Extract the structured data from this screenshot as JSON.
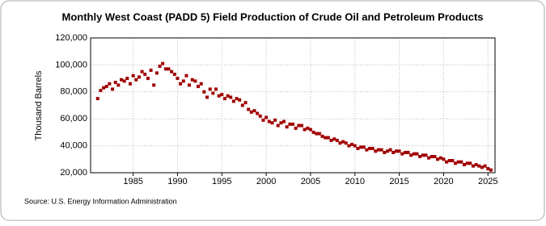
{
  "chart_data": {
    "type": "scatter",
    "title": "Monthly West Coast (PADD 5) Field Production of Crude Oil and Petroleum Products",
    "y_label": "Thousand Barrels",
    "source": "Source: U.S. Energy Information Administration",
    "xlim": [
      1980.2,
      2025.8
    ],
    "xticks": [
      1985,
      1990,
      1995,
      2000,
      2005,
      2010,
      2015,
      2020,
      2025
    ],
    "ylim": [
      20000,
      120000
    ],
    "yticks": [
      {
        "value": 20000,
        "label": "20,000"
      },
      {
        "value": 40000,
        "label": "40,000"
      },
      {
        "value": 60000,
        "label": "60,000"
      },
      {
        "value": 80000,
        "label": "80,000"
      },
      {
        "value": 100000,
        "label": "100,000"
      },
      {
        "value": 120000,
        "label": "120,000"
      }
    ],
    "grid": true,
    "color": "#a00000",
    "x": [
      1981,
      1981.33,
      1981.67,
      1982,
      1982.33,
      1982.67,
      1983,
      1983.33,
      1983.67,
      1984,
      1984.33,
      1984.67,
      1985,
      1985.33,
      1985.67,
      1986,
      1986.33,
      1986.67,
      1987,
      1987.33,
      1987.67,
      1988,
      1988.33,
      1988.67,
      1989,
      1989.33,
      1989.67,
      1990,
      1990.33,
      1990.67,
      1991,
      1991.33,
      1991.67,
      1992,
      1992.33,
      1992.67,
      1993,
      1993.33,
      1993.67,
      1994,
      1994.33,
      1994.67,
      1995,
      1995.33,
      1995.67,
      1996,
      1996.33,
      1996.67,
      1997,
      1997.33,
      1997.67,
      1998,
      1998.33,
      1998.67,
      1999,
      1999.33,
      1999.67,
      2000,
      2000.33,
      2000.67,
      2001,
      2001.33,
      2001.67,
      2002,
      2002.33,
      2002.67,
      2003,
      2003.33,
      2003.67,
      2004,
      2004.33,
      2004.67,
      2005,
      2005.33,
      2005.67,
      2006,
      2006.33,
      2006.67,
      2007,
      2007.33,
      2007.67,
      2008,
      2008.33,
      2008.67,
      2009,
      2009.33,
      2009.67,
      2010,
      2010.33,
      2010.67,
      2011,
      2011.33,
      2011.67,
      2012,
      2012.33,
      2012.67,
      2013,
      2013.33,
      2013.67,
      2014,
      2014.33,
      2014.67,
      2015,
      2015.33,
      2015.67,
      2016,
      2016.33,
      2016.67,
      2017,
      2017.33,
      2017.67,
      2018,
      2018.33,
      2018.67,
      2019,
      2019.33,
      2019.67,
      2020,
      2020.33,
      2020.67,
      2021,
      2021.33,
      2021.67,
      2022,
      2022.33,
      2022.67,
      2023,
      2023.33,
      2023.67,
      2024,
      2024.33,
      2024.67,
      2025,
      2025.33
    ],
    "values": [
      75000,
      81000,
      83000,
      84000,
      86000,
      82000,
      87000,
      85000,
      89000,
      88000,
      90000,
      86000,
      92000,
      89000,
      91000,
      95000,
      93000,
      90000,
      96000,
      85000,
      94000,
      99000,
      101000,
      97000,
      97000,
      95000,
      93000,
      90000,
      86000,
      88000,
      92000,
      85000,
      89000,
      88000,
      84000,
      86000,
      80000,
      76000,
      82000,
      79000,
      82000,
      77000,
      78000,
      75000,
      77000,
      76000,
      73000,
      75000,
      74000,
      70000,
      72000,
      67000,
      65000,
      66000,
      64000,
      62000,
      59000,
      61000,
      58000,
      57000,
      59000,
      55000,
      57000,
      58000,
      54000,
      56000,
      56000,
      53000,
      55000,
      55000,
      52000,
      53000,
      52000,
      50000,
      49000,
      49000,
      47000,
      46000,
      46000,
      44000,
      45000,
      44000,
      42000,
      43000,
      42000,
      40000,
      41000,
      40000,
      38000,
      39000,
      39000,
      37000,
      38000,
      38000,
      36000,
      37000,
      37000,
      35000,
      36000,
      37000,
      35000,
      36000,
      36000,
      34000,
      35000,
      35000,
      33000,
      34000,
      34000,
      32000,
      33000,
      33000,
      31000,
      32000,
      32000,
      30000,
      31000,
      30000,
      28000,
      29000,
      29000,
      27000,
      28000,
      28000,
      26000,
      27000,
      27000,
      25000,
      26000,
      25000,
      24000,
      25000,
      23000,
      22000
    ]
  }
}
